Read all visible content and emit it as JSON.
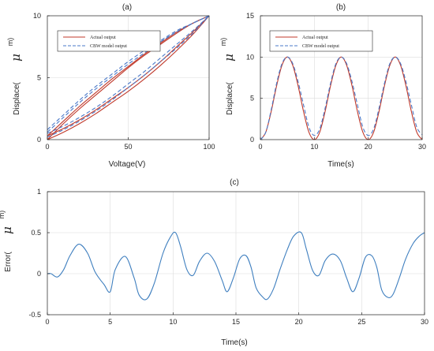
{
  "chart_data": [
    {
      "id": "a",
      "type": "line",
      "title": "(a)",
      "xlabel": "Voltage(V)",
      "ylabel": "Displace(",
      "ylabel_symbol": "μ",
      "ylabel_unit": "m)",
      "xlim": [
        0,
        100
      ],
      "ylim": [
        0,
        10
      ],
      "xticks": [
        0,
        50,
        100
      ],
      "yticks": [
        0,
        5,
        10
      ],
      "grid": true,
      "legend": "top-left",
      "series": [
        {
          "name": "Actual output",
          "color": "#c0392b",
          "style": "solid",
          "loops": [
            {
              "x": [
                0,
                10,
                20,
                30,
                40,
                50,
                60,
                70,
                80,
                90,
                100
              ],
              "up": [
                0,
                0.6,
                1.3,
                2.1,
                3.0,
                3.9,
                4.9,
                6.0,
                7.2,
                8.5,
                10
              ],
              "down": [
                0,
                1.3,
                2.5,
                3.6,
                4.7,
                5.8,
                6.8,
                7.7,
                8.6,
                9.4,
                10
              ]
            },
            {
              "x": [
                0,
                10,
                20,
                30,
                40,
                50,
                60,
                70,
                80,
                90,
                100
              ],
              "up": [
                0.3,
                0.9,
                1.6,
                2.4,
                3.3,
                4.2,
                5.2,
                6.3,
                7.5,
                8.7,
                10
              ],
              "down": [
                0.3,
                1.5,
                2.7,
                3.8,
                4.9,
                5.9,
                6.9,
                7.8,
                8.7,
                9.4,
                10
              ]
            }
          ]
        },
        {
          "name": "CBW model output",
          "color": "#4a78c8",
          "style": "dashed",
          "loops": [
            {
              "x": [
                0,
                10,
                20,
                30,
                40,
                50,
                60,
                70,
                80,
                90,
                100
              ],
              "up": [
                0.2,
                0.8,
                1.5,
                2.3,
                3.2,
                4.2,
                5.2,
                6.3,
                7.4,
                8.6,
                10
              ],
              "down": [
                0.6,
                1.8,
                3.0,
                4.1,
                5.1,
                6.1,
                7.0,
                7.9,
                8.7,
                9.4,
                10
              ]
            },
            {
              "x": [
                0,
                10,
                20,
                30,
                40,
                50,
                60,
                70,
                80,
                90,
                100
              ],
              "up": [
                0.5,
                1.1,
                1.8,
                2.6,
                3.5,
                4.5,
                5.5,
                6.6,
                7.7,
                8.8,
                10
              ],
              "down": [
                0.8,
                2.0,
                3.2,
                4.3,
                5.3,
                6.3,
                7.2,
                8.0,
                8.8,
                9.4,
                10
              ]
            }
          ]
        }
      ]
    },
    {
      "id": "b",
      "type": "line",
      "title": "(b)",
      "xlabel": "Time(s)",
      "ylabel": "Displace(",
      "ylabel_symbol": "μ",
      "ylabel_unit": "m)",
      "xlim": [
        0,
        30
      ],
      "ylim": [
        0,
        15
      ],
      "xticks": [
        0,
        10,
        20,
        30
      ],
      "yticks": [
        0,
        5,
        10,
        15
      ],
      "grid": true,
      "legend": "top-left",
      "x": [
        0,
        1,
        2,
        3,
        4,
        5,
        6,
        7,
        8,
        9,
        10,
        11,
        12,
        13,
        14,
        15,
        16,
        17,
        18,
        19,
        20,
        21,
        22,
        23,
        24,
        25,
        26,
        27,
        28,
        29,
        30
      ],
      "series": [
        {
          "name": "Actual output",
          "color": "#c0392b",
          "style": "solid",
          "values": [
            0,
            0.9,
            3.4,
            6.5,
            9.0,
            10.0,
            9.0,
            6.5,
            3.4,
            0.9,
            0,
            0.9,
            3.4,
            6.5,
            9.0,
            10.0,
            9.0,
            6.5,
            3.4,
            0.9,
            0,
            0.9,
            3.4,
            6.5,
            9.0,
            10.0,
            9.0,
            6.5,
            3.4,
            0.9,
            0
          ]
        },
        {
          "name": "CBW model output",
          "color": "#4a78c8",
          "style": "dashed",
          "values": [
            0,
            0.9,
            3.6,
            6.8,
            9.2,
            10.0,
            9.2,
            7.0,
            4.2,
            1.5,
            0.5,
            1.3,
            3.8,
            6.8,
            9.2,
            10.0,
            9.2,
            7.0,
            4.2,
            1.5,
            0.5,
            1.3,
            3.8,
            6.8,
            9.2,
            10.0,
            9.2,
            7.0,
            4.2,
            1.5,
            0.6
          ]
        }
      ]
    },
    {
      "id": "c",
      "type": "line",
      "title": "(c)",
      "xlabel": "Time(s)",
      "ylabel": "Error(",
      "ylabel_symbol": "μ",
      "ylabel_unit": "m)",
      "xlim": [
        0,
        30
      ],
      "ylim": [
        -0.5,
        1
      ],
      "xticks": [
        0,
        5,
        10,
        15,
        20,
        25,
        30
      ],
      "yticks": [
        -0.5,
        0,
        0.5,
        1
      ],
      "grid": true,
      "series": [
        {
          "name": "",
          "color": "#3f7fbf",
          "style": "solid",
          "x": [
            0,
            0.3,
            0.8,
            1.3,
            1.8,
            2.5,
            3.2,
            3.8,
            4.5,
            5.0,
            5.4,
            6.2,
            6.9,
            7.3,
            7.9,
            8.5,
            9.2,
            9.8,
            10.2,
            10.6,
            11.1,
            11.6,
            12.1,
            12.7,
            13.3,
            13.9,
            14.3,
            14.8,
            15.3,
            15.8,
            16.2,
            16.6,
            17.1,
            17.5,
            18.0,
            18.5,
            19.1,
            19.6,
            20.2,
            20.6,
            21.1,
            21.6,
            22.1,
            22.7,
            23.3,
            23.8,
            24.3,
            24.8,
            25.3,
            25.8,
            26.2,
            26.6,
            27.1,
            27.5,
            28.0,
            28.5,
            29.1,
            29.6,
            30.0
          ],
          "values": [
            0,
            0,
            -0.04,
            0.05,
            0.22,
            0.36,
            0.25,
            0.02,
            -0.13,
            -0.22,
            0.05,
            0.21,
            -0.05,
            -0.26,
            -0.31,
            -0.12,
            0.25,
            0.45,
            0.5,
            0.33,
            0.05,
            -0.02,
            0.15,
            0.25,
            0.15,
            -0.08,
            -0.22,
            -0.05,
            0.18,
            0.22,
            0.08,
            -0.17,
            -0.28,
            -0.31,
            -0.18,
            0.05,
            0.3,
            0.46,
            0.5,
            0.3,
            0.04,
            -0.02,
            0.16,
            0.24,
            0.16,
            -0.05,
            -0.22,
            -0.05,
            0.2,
            0.22,
            0.08,
            -0.2,
            -0.29,
            -0.25,
            -0.05,
            0.18,
            0.37,
            0.46,
            0.5
          ]
        }
      ]
    }
  ]
}
